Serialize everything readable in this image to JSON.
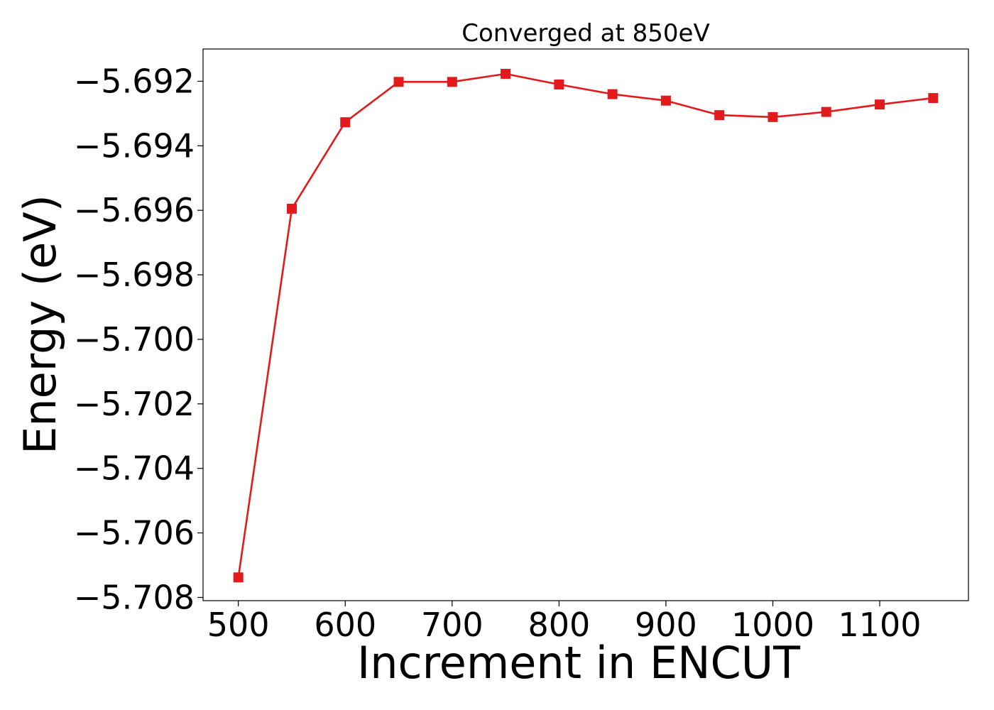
{
  "chart_data": {
    "type": "line",
    "title": "Converged at 850eV",
    "xlabel": "Increment in ENCUT",
    "ylabel": "Energy (eV)",
    "xlim": [
      467,
      1183
    ],
    "ylim": [
      -5.7081,
      -5.691
    ],
    "x_ticks": [
      500,
      600,
      700,
      800,
      900,
      1000,
      1100
    ],
    "x_tick_labels": [
      "500",
      "600",
      "700",
      "800",
      "900",
      "1000",
      "1100"
    ],
    "y_ticks": [
      -5.692,
      -5.694,
      -5.696,
      -5.698,
      -5.7,
      -5.702,
      -5.704,
      -5.706,
      -5.708
    ],
    "y_tick_labels": [
      "−5.692",
      "−5.694",
      "−5.696",
      "−5.698",
      "−5.700",
      "−5.702",
      "−5.704",
      "−5.706",
      "−5.708"
    ],
    "grid": false,
    "series": [
      {
        "color": "#e31a1c",
        "marker": "square",
        "x": [
          500,
          550,
          600,
          650,
          700,
          750,
          800,
          850,
          900,
          950,
          1000,
          1050,
          1100,
          1150
        ],
        "y": [
          -5.70738,
          -5.69595,
          -5.69327,
          -5.69202,
          -5.69202,
          -5.69177,
          -5.6921,
          -5.6924,
          -5.6926,
          -5.69305,
          -5.69311,
          -5.69295,
          -5.69272,
          -5.69252
        ]
      }
    ]
  }
}
